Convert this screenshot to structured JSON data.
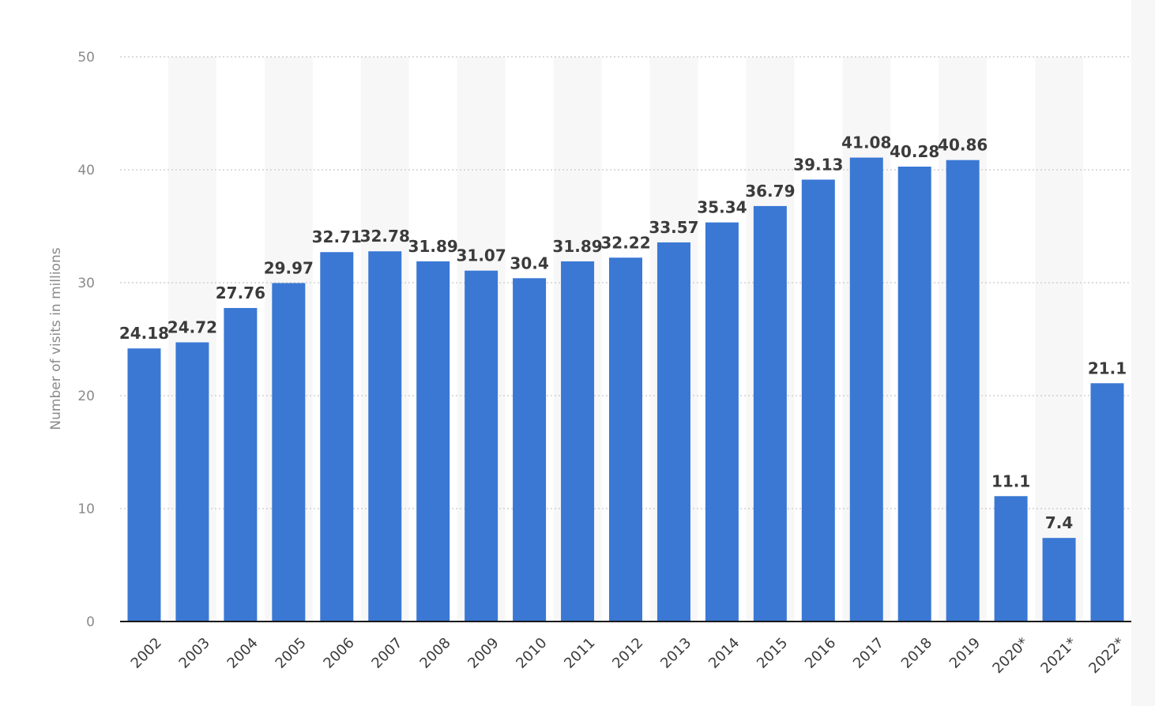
{
  "chart_data": {
    "type": "bar",
    "title": "",
    "xlabel": "",
    "ylabel": "Number of visits in millions",
    "ylim": [
      0,
      50
    ],
    "yticks": [
      0,
      10,
      20,
      30,
      40,
      50
    ],
    "grid": true,
    "categories": [
      "2002",
      "2003",
      "2004",
      "2005",
      "2006",
      "2007",
      "2008",
      "2009",
      "2010",
      "2011",
      "2012",
      "2013",
      "2014",
      "2015",
      "2016",
      "2017",
      "2018",
      "2019",
      "2020*",
      "2021*",
      "2022*"
    ],
    "values": [
      24.18,
      24.72,
      27.76,
      29.97,
      32.71,
      32.78,
      31.89,
      31.07,
      30.4,
      31.89,
      32.22,
      33.57,
      35.34,
      36.79,
      39.13,
      41.08,
      40.28,
      40.86,
      11.1,
      7.4,
      21.1
    ],
    "colors": {
      "bar": "#3a78d4",
      "stripe": "#f7f7f7",
      "grid": "#c8c8c8",
      "axis": "#1a1a1a"
    }
  }
}
